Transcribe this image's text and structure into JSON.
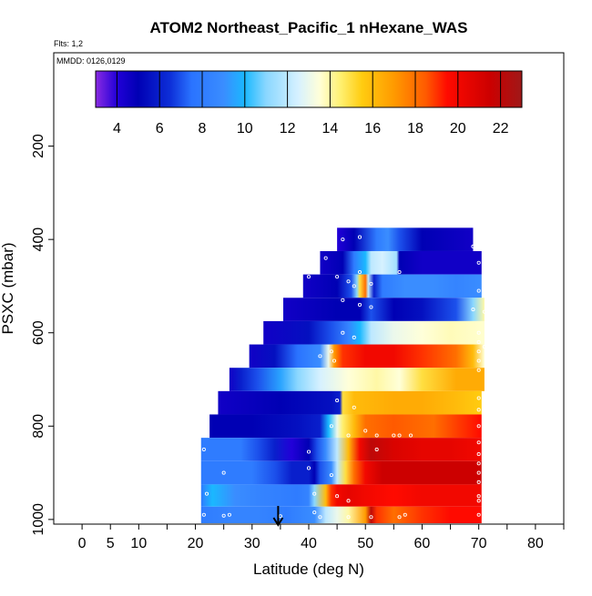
{
  "chart_data": {
    "type": "heatmap",
    "title": "ATOM2 Northeast_Pacific_1 nHexane_WAS",
    "flights_note": "Flts: 1,2",
    "mmdd_note": "MMDD: 0126,0129",
    "xlabel": "Latitude (deg N)",
    "ylabel": "PSXC (mbar)",
    "xlim": [
      -5,
      85
    ],
    "ylim": [
      1010,
      0
    ],
    "x_ticks": [
      0,
      5,
      10,
      20,
      30,
      40,
      50,
      60,
      70,
      80
    ],
    "x_minor_ticks": [
      15,
      25,
      35,
      45,
      55,
      65,
      75,
      85
    ],
    "y_ticks": [
      200,
      400,
      600,
      800,
      1000
    ],
    "colorbar": {
      "min": 3,
      "max": 23,
      "tick_values": [
        4,
        6,
        8,
        10,
        12,
        14,
        16,
        18,
        20,
        22
      ],
      "stops": [
        {
          "v": 3.0,
          "c": "#8a2be2"
        },
        {
          "v": 4.0,
          "c": "#2200d8"
        },
        {
          "v": 5.0,
          "c": "#0000b4"
        },
        {
          "v": 6.5,
          "c": "#0d2fd8"
        },
        {
          "v": 7.5,
          "c": "#2a73ff"
        },
        {
          "v": 9.0,
          "c": "#3a8dff"
        },
        {
          "v": 10.0,
          "c": "#1ab8ff"
        },
        {
          "v": 11.0,
          "c": "#8ad7ff"
        },
        {
          "v": 12.5,
          "c": "#d6f1ff"
        },
        {
          "v": 13.5,
          "c": "#ffffd9"
        },
        {
          "v": 14.5,
          "c": "#fff070"
        },
        {
          "v": 15.5,
          "c": "#ffcc10"
        },
        {
          "v": 17.0,
          "c": "#ff9a00"
        },
        {
          "v": 18.5,
          "c": "#ff5a00"
        },
        {
          "v": 19.5,
          "c": "#ff0a00"
        },
        {
          "v": 21.5,
          "c": "#cc0000"
        },
        {
          "v": 23.0,
          "c": "#a01818"
        }
      ]
    },
    "arrow_latitude": 34.6,
    "rows": [
      {
        "p": 400,
        "lat_start": 45,
        "lat_end": 69,
        "stops": [
          [
            45,
            4
          ],
          [
            48,
            5
          ],
          [
            52,
            8
          ],
          [
            54,
            9
          ],
          [
            56,
            7
          ],
          [
            60,
            5
          ],
          [
            69,
            4.5
          ]
        ]
      },
      {
        "p": 450,
        "lat_start": 42,
        "lat_end": 70.5,
        "stops": [
          [
            42,
            4.5
          ],
          [
            46,
            5
          ],
          [
            48,
            8
          ],
          [
            50,
            10
          ],
          [
            51,
            12
          ],
          [
            53,
            12.5
          ],
          [
            55.5,
            11.5
          ],
          [
            56,
            5
          ],
          [
            60,
            4.5
          ],
          [
            70.5,
            4.5
          ]
        ]
      },
      {
        "p": 500,
        "lat_start": 39,
        "lat_end": 70.5,
        "stops": [
          [
            39,
            4.5
          ],
          [
            45,
            5
          ],
          [
            47.5,
            7
          ],
          [
            48.5,
            11
          ],
          [
            49,
            15
          ],
          [
            50,
            18
          ],
          [
            50.5,
            12
          ],
          [
            51.5,
            6
          ],
          [
            53,
            8
          ],
          [
            57,
            9
          ],
          [
            62,
            9
          ],
          [
            66,
            8.5
          ],
          [
            70.5,
            9
          ]
        ]
      },
      {
        "p": 550,
        "lat_start": 35.5,
        "lat_end": 71,
        "stops": [
          [
            35.5,
            4.5
          ],
          [
            45,
            5
          ],
          [
            49,
            5
          ],
          [
            51,
            7
          ],
          [
            55,
            5
          ],
          [
            60,
            5.5
          ],
          [
            66,
            7
          ],
          [
            69,
            11
          ],
          [
            71,
            14
          ]
        ]
      },
      {
        "p": 600,
        "lat_start": 32,
        "lat_end": 71,
        "stops": [
          [
            32,
            4.5
          ],
          [
            40,
            5.5
          ],
          [
            44,
            7
          ],
          [
            47,
            8.5
          ],
          [
            49,
            10
          ],
          [
            51,
            12
          ],
          [
            55,
            13
          ],
          [
            60,
            13.5
          ],
          [
            65,
            13.8
          ],
          [
            71,
            13.6
          ]
        ]
      },
      {
        "p": 650,
        "lat_start": 29.5,
        "lat_end": 71,
        "stops": [
          [
            29.5,
            4.5
          ],
          [
            34,
            5.5
          ],
          [
            38,
            7.5
          ],
          [
            42,
            9
          ],
          [
            43.5,
            13
          ],
          [
            44.5,
            17
          ],
          [
            46,
            19
          ],
          [
            50,
            20
          ],
          [
            55,
            20
          ],
          [
            60,
            19
          ],
          [
            66,
            18
          ],
          [
            69,
            16
          ],
          [
            71,
            13.5
          ]
        ]
      },
      {
        "p": 700,
        "lat_start": 26,
        "lat_end": 71,
        "stops": [
          [
            26,
            4.5
          ],
          [
            28,
            6
          ],
          [
            31,
            7
          ],
          [
            35,
            9.5
          ],
          [
            38,
            11
          ],
          [
            42,
            12.5
          ],
          [
            47,
            13.5
          ],
          [
            52,
            14
          ],
          [
            56,
            13.5
          ],
          [
            60,
            15
          ],
          [
            66,
            16.5
          ],
          [
            71,
            16.5
          ]
        ]
      },
      {
        "p": 750,
        "lat_start": 24,
        "lat_end": 70.5,
        "stops": [
          [
            24,
            4.5
          ],
          [
            35,
            5
          ],
          [
            44,
            5.5
          ],
          [
            45.5,
            6
          ],
          [
            46,
            15
          ],
          [
            48,
            16
          ],
          [
            55,
            16.5
          ],
          [
            60,
            16.5
          ],
          [
            66,
            16
          ],
          [
            70.5,
            15.5
          ]
        ]
      },
      {
        "p": 800,
        "lat_start": 22.5,
        "lat_end": 70.5,
        "stops": [
          [
            22.5,
            5
          ],
          [
            30,
            5
          ],
          [
            38,
            5.5
          ],
          [
            42,
            6
          ],
          [
            43.5,
            10
          ],
          [
            45,
            13
          ],
          [
            46,
            14.5
          ],
          [
            48,
            16
          ],
          [
            50,
            18
          ],
          [
            55,
            18.5
          ],
          [
            62,
            18
          ],
          [
            70.5,
            19.5
          ]
        ]
      },
      {
        "p": 850,
        "lat_start": 21,
        "lat_end": 70.5,
        "stops": [
          [
            21,
            8
          ],
          [
            28,
            8
          ],
          [
            31,
            7
          ],
          [
            34,
            6
          ],
          [
            37,
            4
          ],
          [
            40,
            5
          ],
          [
            41.5,
            7
          ],
          [
            43,
            9
          ],
          [
            45,
            12
          ],
          [
            47,
            16
          ],
          [
            49,
            20
          ],
          [
            51,
            22
          ],
          [
            55,
            21
          ],
          [
            60,
            20.5
          ],
          [
            65,
            20.5
          ],
          [
            70.5,
            20
          ]
        ]
      },
      {
        "p": 900,
        "lat_start": 21,
        "lat_end": 70.5,
        "stops": [
          [
            21,
            8
          ],
          [
            30,
            8
          ],
          [
            34,
            7
          ],
          [
            37,
            6
          ],
          [
            40,
            6
          ],
          [
            41,
            5
          ],
          [
            42,
            7
          ],
          [
            44,
            9
          ],
          [
            45,
            12
          ],
          [
            46.5,
            15
          ],
          [
            48,
            18
          ],
          [
            50,
            20
          ],
          [
            53,
            21.5
          ],
          [
            60,
            21.5
          ],
          [
            70.5,
            21.5
          ]
        ]
      },
      {
        "p": 950,
        "lat_start": 21,
        "lat_end": 70.5,
        "stops": [
          [
            21,
            8
          ],
          [
            23,
            10
          ],
          [
            27,
            9
          ],
          [
            31,
            8.5
          ],
          [
            38,
            8
          ],
          [
            40,
            8.5
          ],
          [
            41,
            11
          ],
          [
            43,
            16
          ],
          [
            44,
            19
          ],
          [
            45,
            20
          ],
          [
            47,
            20.5
          ],
          [
            50,
            20
          ],
          [
            55,
            19.5
          ],
          [
            60,
            20
          ],
          [
            70.5,
            20
          ]
        ]
      },
      {
        "p": 995,
        "lat_start": 21,
        "lat_end": 70.5,
        "stops": [
          [
            21,
            8
          ],
          [
            26,
            8.5
          ],
          [
            31,
            8.5
          ],
          [
            36,
            8
          ],
          [
            41,
            9
          ],
          [
            43,
            12
          ],
          [
            45,
            13
          ],
          [
            47,
            14
          ],
          [
            50,
            17
          ],
          [
            51,
            22
          ],
          [
            52,
            19
          ],
          [
            55,
            18
          ],
          [
            60,
            19
          ],
          [
            65,
            19.5
          ],
          [
            70.5,
            19.5
          ]
        ]
      }
    ],
    "sample_points": [
      [
        46,
        400
      ],
      [
        49,
        395
      ],
      [
        69,
        415
      ],
      [
        43,
        440
      ],
      [
        49,
        470
      ],
      [
        56,
        470
      ],
      [
        70,
        450
      ],
      [
        40,
        480
      ],
      [
        45,
        480
      ],
      [
        47,
        490
      ],
      [
        48,
        500
      ],
      [
        51,
        495
      ],
      [
        70,
        510
      ],
      [
        46,
        530
      ],
      [
        49,
        540
      ],
      [
        51,
        545
      ],
      [
        69,
        550
      ],
      [
        71,
        555
      ],
      [
        46,
        600
      ],
      [
        48,
        610
      ],
      [
        70,
        600
      ],
      [
        70,
        620
      ],
      [
        70,
        640
      ],
      [
        71,
        630
      ],
      [
        42,
        650
      ],
      [
        44,
        640
      ],
      [
        44.5,
        660
      ],
      [
        70,
        660
      ],
      [
        70,
        680
      ],
      [
        45,
        745
      ],
      [
        48,
        760
      ],
      [
        70,
        765
      ],
      [
        70,
        740
      ],
      [
        44,
        800
      ],
      [
        47,
        820
      ],
      [
        50,
        810
      ],
      [
        52,
        820
      ],
      [
        55,
        820
      ],
      [
        56,
        820
      ],
      [
        58,
        820
      ],
      [
        70,
        800
      ],
      [
        70,
        835
      ],
      [
        21.5,
        850
      ],
      [
        40,
        855
      ],
      [
        52,
        850
      ],
      [
        70,
        860
      ],
      [
        70,
        880
      ],
      [
        25,
        900
      ],
      [
        40,
        890
      ],
      [
        44,
        905
      ],
      [
        70,
        900
      ],
      [
        70,
        920
      ],
      [
        22,
        945
      ],
      [
        41,
        945
      ],
      [
        45,
        950
      ],
      [
        47,
        960
      ],
      [
        70,
        960
      ],
      [
        70,
        950
      ],
      [
        21.5,
        990
      ],
      [
        25,
        992
      ],
      [
        26,
        990
      ],
      [
        35,
        993
      ],
      [
        41,
        985
      ],
      [
        42,
        995
      ],
      [
        47,
        995
      ],
      [
        51,
        995
      ],
      [
        56,
        995
      ],
      [
        57,
        990
      ],
      [
        70,
        990
      ]
    ]
  }
}
